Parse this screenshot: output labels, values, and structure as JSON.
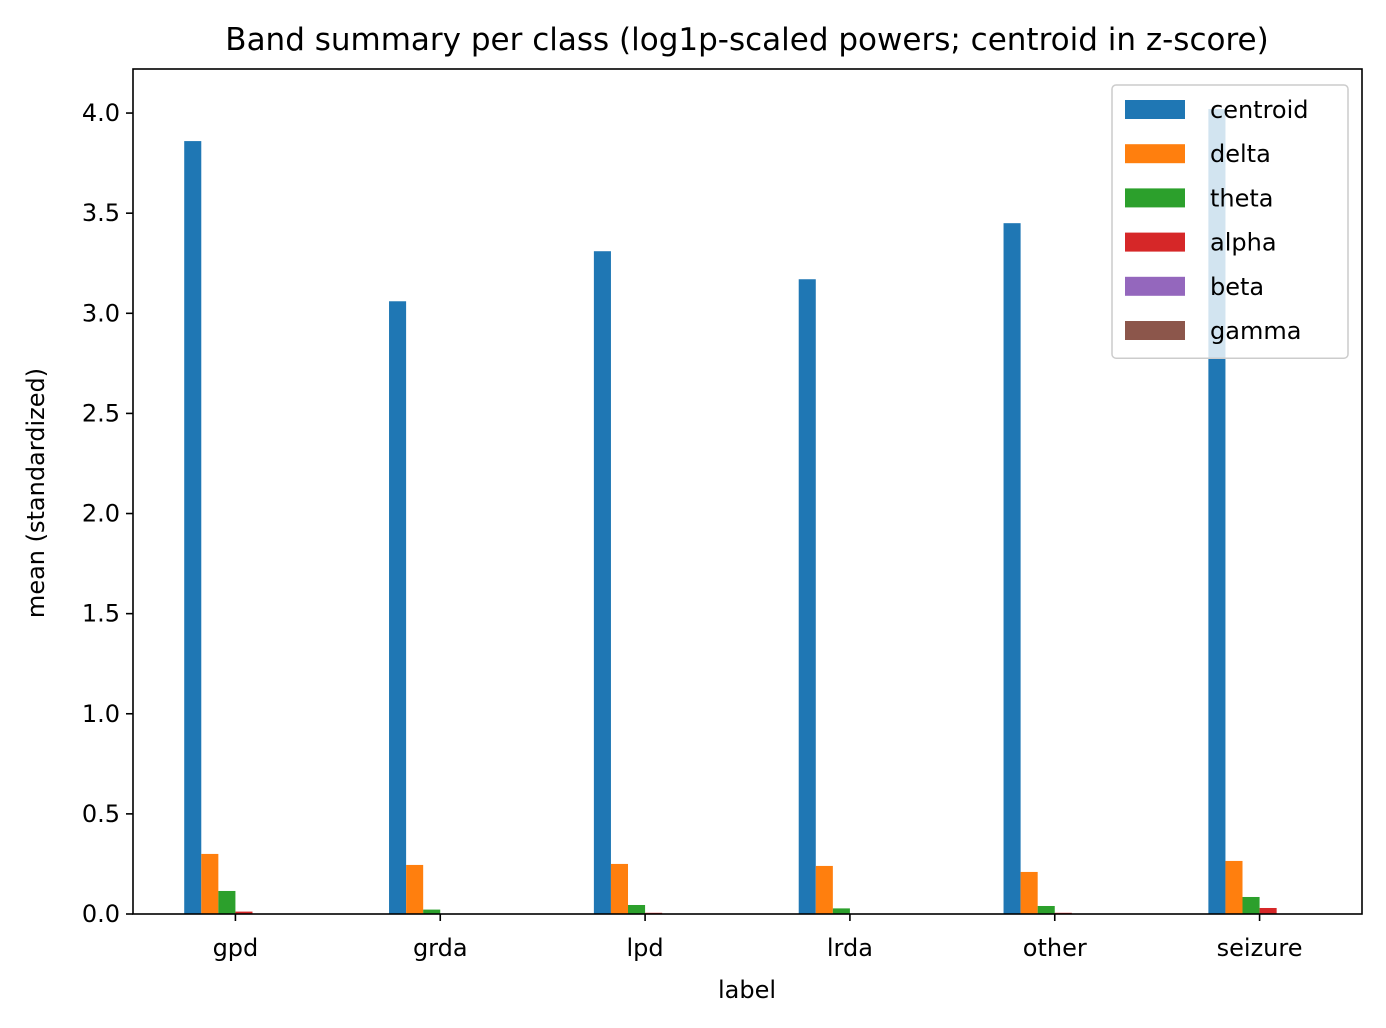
{
  "chart_data": {
    "type": "bar",
    "title": "Band summary per class (log1p-scaled powers; centroid in z-score)",
    "xlabel": "label",
    "ylabel": "mean (standardized)",
    "categories": [
      "gpd",
      "grda",
      "lpd",
      "lrda",
      "other",
      "seizure"
    ],
    "ylim": [
      0,
      4.22
    ],
    "yticks": [
      0.0,
      0.5,
      1.0,
      1.5,
      2.0,
      2.5,
      3.0,
      3.5,
      4.0
    ],
    "ytick_labels": [
      "0.0",
      "0.5",
      "1.0",
      "1.5",
      "2.0",
      "2.5",
      "3.0",
      "3.5",
      "4.0"
    ],
    "grid": false,
    "legend_position": "top-right",
    "series": [
      {
        "name": "centroid",
        "color": "#1f77b4",
        "values": [
          3.86,
          3.06,
          3.31,
          3.17,
          3.45,
          4.02
        ]
      },
      {
        "name": "delta",
        "color": "#ff7f0e",
        "values": [
          0.3,
          0.245,
          0.25,
          0.24,
          0.21,
          0.265
        ]
      },
      {
        "name": "theta",
        "color": "#2ca02c",
        "values": [
          0.115,
          0.022,
          0.045,
          0.028,
          0.04,
          0.085
        ]
      },
      {
        "name": "alpha",
        "color": "#d62728",
        "values": [
          0.012,
          0.002,
          0.006,
          0.002,
          0.006,
          0.03
        ]
      },
      {
        "name": "beta",
        "color": "#9467bd",
        "values": [
          0.001,
          0.0,
          0.001,
          0.0,
          0.001,
          0.002
        ]
      },
      {
        "name": "gamma",
        "color": "#8c564b",
        "values": [
          0.0,
          0.0,
          0.0,
          0.0,
          0.0,
          0.001
        ]
      }
    ]
  }
}
